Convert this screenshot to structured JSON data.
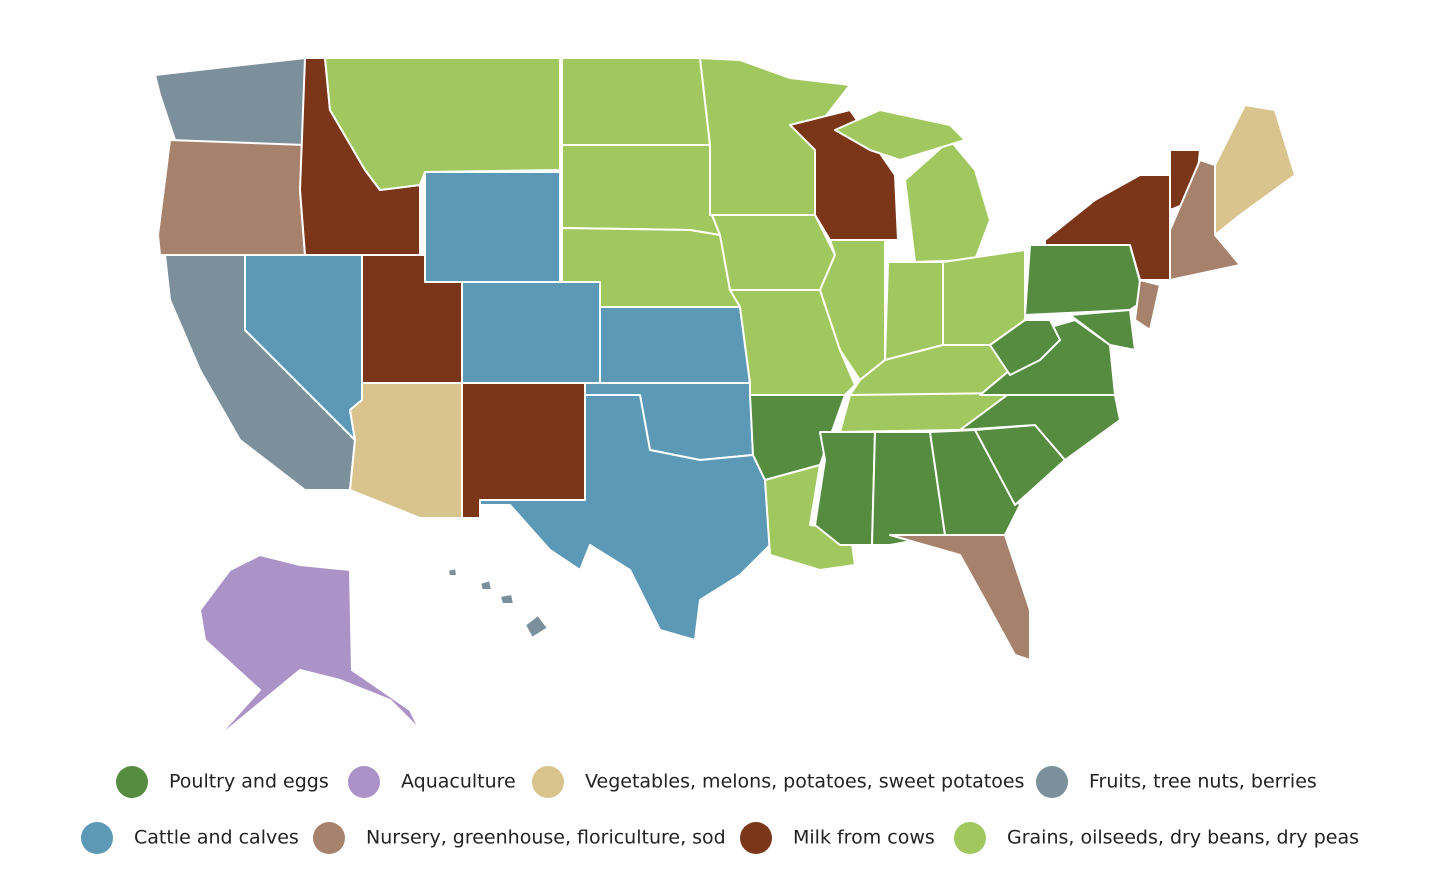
{
  "legend": [
    {
      "label": "Poultry and eggs",
      "color": "#558c40"
    },
    {
      "label": "Aquaculture",
      "color": "#ab92c7"
    },
    {
      "label": "Vegetables, melons, potatoes, sweet potatoes",
      "color": "#d9c48e"
    },
    {
      "label": "Fruits, tree nuts, berries",
      "color": "#7b909b"
    },
    {
      "label": "Cattle and calves",
      "color": "#5b99b6"
    },
    {
      "label": "Nursery, greenhouse, floriculture, sod",
      "color": "#a6816c"
    },
    {
      "label": "Milk from cows",
      "color": "#7b3518"
    },
    {
      "label": "Grains, oilseeds, dry beans, dry peas",
      "color": "#a1c85f"
    }
  ]
}
